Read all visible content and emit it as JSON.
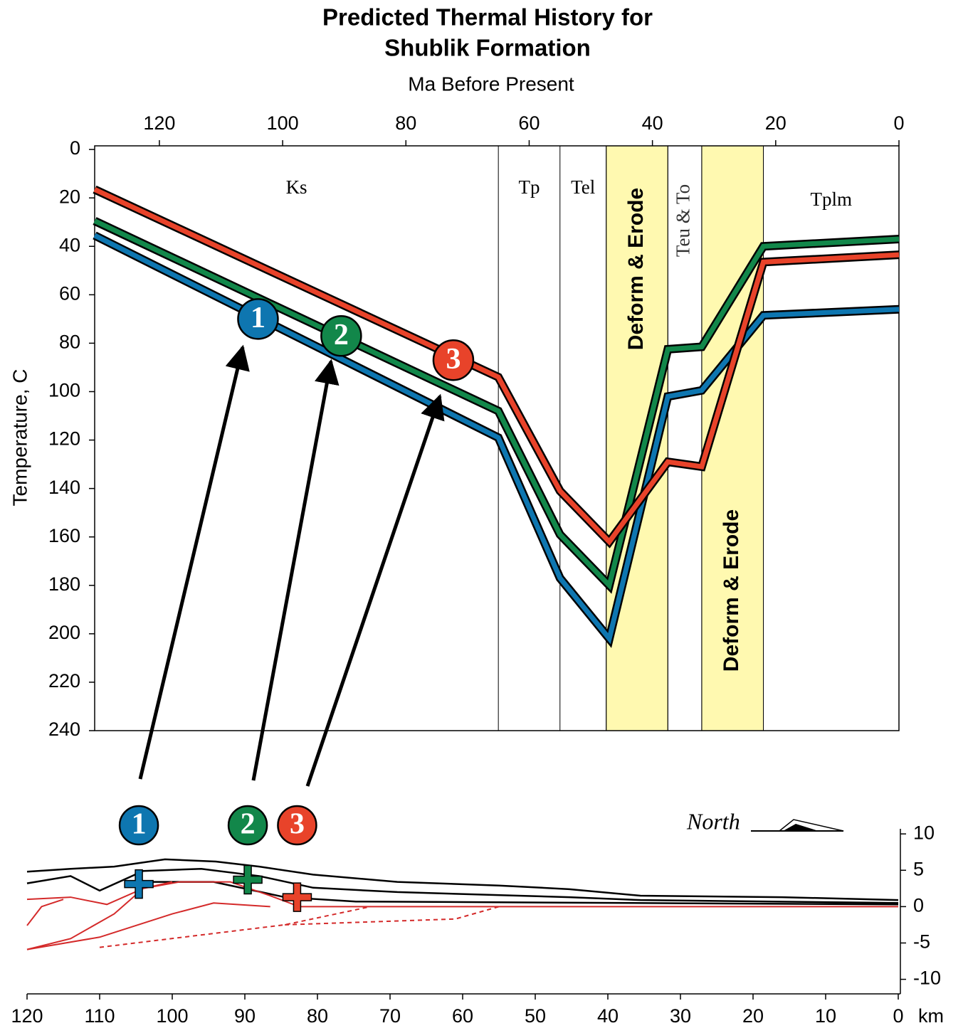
{
  "chart_data": [
    {
      "type": "line",
      "title": [
        "Predicted Thermal History for",
        "Shublik Formation"
      ],
      "x_label": "Ma Before Present",
      "y_label": "Temperature,  C",
      "xlim": [
        130.5,
        0
      ],
      "ylim": [
        -1.5,
        240
      ],
      "xticks": [
        120,
        100,
        80,
        60,
        40,
        20,
        0
      ],
      "yticks": [
        0,
        20,
        40,
        60,
        80,
        100,
        120,
        140,
        160,
        180,
        200,
        220,
        240
      ],
      "x": [
        130.5,
        65,
        55,
        47,
        37.5,
        32,
        22,
        0
      ],
      "series": [
        {
          "color": "#0e76b0",
          "values": [
            35.5,
            119,
            177,
            202,
            102,
            99.5,
            68.5,
            66
          ]
        },
        {
          "color": "#12874a",
          "values": [
            29.5,
            108,
            159,
            180,
            82.5,
            81.5,
            40,
            37
          ]
        },
        {
          "color": "#e8432a",
          "values": [
            16.5,
            94,
            141,
            162,
            129,
            131,
            46.5,
            43.5
          ]
        }
      ],
      "periods": [
        {
          "label": "Ks",
          "from": 130.5,
          "to": 65
        },
        {
          "label": "Tp",
          "from": 65,
          "to": 55
        },
        {
          "label": "Tel",
          "from": 55,
          "to": 47.5
        },
        {
          "label": "Teu & To",
          "from": 37.5,
          "to": 32
        },
        {
          "label": "Tplm",
          "from": 22,
          "to": 0
        }
      ],
      "bands": [
        {
          "label": "Deform & Erode",
          "from": 47.5,
          "to": 37.5,
          "color": "#fff9b0"
        },
        {
          "label": "Deform & Erode",
          "from": 32,
          "to": 22,
          "color": "#fff9b0"
        }
      ],
      "markers": [
        {
          "label": "1",
          "x": 104,
          "y": 70,
          "color": "#0e76b0"
        },
        {
          "label": "2",
          "x": 90.5,
          "y": 77,
          "color": "#12874a"
        },
        {
          "label": "3",
          "x": 72.3,
          "y": 87,
          "color": "#e8432a"
        }
      ]
    },
    {
      "type": "cross-section",
      "x_label": "km",
      "north_label": "North",
      "xlim": [
        120,
        0
      ],
      "ylim": [
        -12,
        10.7
      ],
      "xticks": [
        120,
        110,
        100,
        90,
        80,
        70,
        60,
        50,
        40,
        30,
        20,
        10,
        0
      ],
      "yticks": [
        10,
        5,
        0,
        -5,
        -10
      ],
      "series": [
        {
          "color": "#000000",
          "dash": false,
          "x": [
            120,
            114,
            108,
            101,
            94,
            88,
            80.6,
            69,
            55,
            45.3,
            35.5,
            16,
            0
          ],
          "values": [
            4.8,
            5.2,
            5.5,
            6.5,
            6.2,
            5.5,
            4.4,
            3.4,
            2.9,
            2.4,
            1.5,
            1.3,
            0.9
          ]
        },
        {
          "color": "#000000",
          "dash": false,
          "x": [
            120,
            114,
            110,
            104,
            96,
            88,
            80.6,
            69,
            45.3,
            35.5,
            0
          ],
          "values": [
            3.2,
            4.2,
            2.2,
            4.9,
            5.2,
            4.2,
            2.6,
            2.0,
            1.3,
            0.9,
            0.5
          ]
        },
        {
          "color": "#000000",
          "dash": false,
          "x": [
            104,
            94.3,
            84.5,
            74.7,
            0
          ],
          "values": [
            3.4,
            3.4,
            1.3,
            0.7,
            0.3
          ]
        },
        {
          "color": "#d42a2a",
          "dash": false,
          "x": [
            120,
            114,
            109,
            104,
            99,
            92,
            86.5,
            82.5,
            0
          ],
          "values": [
            1,
            1.3,
            0.3,
            2.5,
            3.4,
            3.4,
            1.5,
            0,
            0
          ]
        },
        {
          "color": "#d42a2a",
          "dash": false,
          "x": [
            120,
            118,
            115
          ],
          "values": [
            -2.6,
            0,
            1
          ]
        },
        {
          "color": "#d42a2a",
          "dash": false,
          "x": [
            120,
            114,
            108,
            104,
            100
          ],
          "values": [
            -5.9,
            -4.4,
            -1,
            2.5,
            3.4
          ]
        },
        {
          "color": "#d42a2a",
          "dash": false,
          "x": [
            120,
            110,
            100,
            94.3,
            86.5
          ],
          "values": [
            -5.9,
            -4.2,
            -1,
            0.5,
            0
          ]
        },
        {
          "color": "#d42a2a",
          "dash": true,
          "x": [
            110,
            84.5,
            72.7
          ],
          "values": [
            -5.6,
            -2.5,
            0
          ]
        },
        {
          "color": "#d42a2a",
          "dash": true,
          "x": [
            84.5,
            61,
            55
          ],
          "values": [
            -2.5,
            -1.7,
            0
          ]
        }
      ],
      "markers": [
        {
          "label": "1",
          "x": 104.6,
          "y": 3.1,
          "color": "#0e76b0"
        },
        {
          "label": "2",
          "x": 89.6,
          "y": 3.7,
          "color": "#12874a"
        },
        {
          "label": "3",
          "x": 82.8,
          "y": 1.3,
          "color": "#e8432a"
        }
      ]
    }
  ]
}
